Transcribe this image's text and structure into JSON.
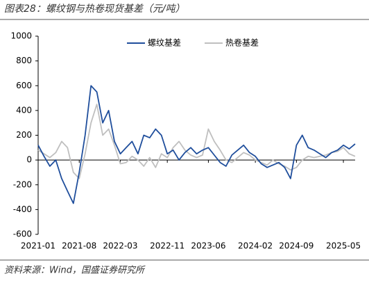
{
  "chart_data": {
    "type": "line",
    "title": "图表28：螺纹钢与热卷现货基差（元/吨）",
    "source": "资料来源：Wind，国盛证券研究所",
    "x": [
      "2021-01",
      "2021-02",
      "2021-03",
      "2021-04",
      "2021-05",
      "2021-06",
      "2021-07",
      "2021-08",
      "2021-09",
      "2021-10",
      "2021-11",
      "2021-12",
      "2022-01",
      "2022-02",
      "2022-03",
      "2022-04",
      "2022-05",
      "2022-06",
      "2022-07",
      "2022-08",
      "2022-09",
      "2022-10",
      "2022-11",
      "2022-12",
      "2023-01",
      "2023-02",
      "2023-03",
      "2023-04",
      "2023-05",
      "2023-06",
      "2023-07",
      "2023-08",
      "2023-09",
      "2023-10",
      "2023-11",
      "2023-12",
      "2024-01",
      "2024-02",
      "2024-03",
      "2024-04",
      "2024-05",
      "2024-06",
      "2024-07",
      "2024-08",
      "2024-09",
      "2024-10",
      "2024-11",
      "2024-12",
      "2025-01",
      "2025-02",
      "2025-03",
      "2025-04",
      "2025-05",
      "2025-06",
      "2025-07"
    ],
    "series": [
      {
        "name": "螺纹基差",
        "color": "#1f4e9c",
        "values": [
          120,
          30,
          -50,
          0,
          -150,
          -250,
          -350,
          -100,
          200,
          600,
          550,
          300,
          400,
          150,
          50,
          100,
          150,
          50,
          200,
          180,
          250,
          200,
          50,
          80,
          0,
          60,
          100,
          50,
          80,
          100,
          40,
          -20,
          -50,
          40,
          80,
          120,
          60,
          30,
          -30,
          -60,
          -40,
          -20,
          -60,
          -150,
          120,
          200,
          100,
          80,
          50,
          20,
          60,
          80,
          120,
          90,
          130
        ]
      },
      {
        "name": "热卷基差",
        "color": "#bfbfbf",
        "values": [
          80,
          50,
          20,
          60,
          150,
          100,
          -100,
          -150,
          50,
          300,
          450,
          200,
          250,
          120,
          -30,
          -20,
          30,
          0,
          -50,
          20,
          -60,
          50,
          20,
          100,
          150,
          80,
          40,
          20,
          40,
          250,
          150,
          80,
          0,
          -20,
          20,
          60,
          40,
          0,
          -20,
          -40,
          0,
          -30,
          -50,
          -80,
          -60,
          0,
          30,
          20,
          30,
          40,
          60,
          70,
          100,
          50,
          30
        ]
      }
    ],
    "xlim": [
      "2021-01",
      "2025-07"
    ],
    "xticks": [
      "2021-01",
      "2021-08",
      "2022-03",
      "2022-11",
      "2023-06",
      "2024-02",
      "2024-09",
      "2025-05"
    ],
    "ylim": [
      -600,
      1000
    ],
    "yticks": [
      -600,
      -400,
      -200,
      0,
      200,
      400,
      600,
      800,
      1000
    ],
    "legend": "top"
  }
}
